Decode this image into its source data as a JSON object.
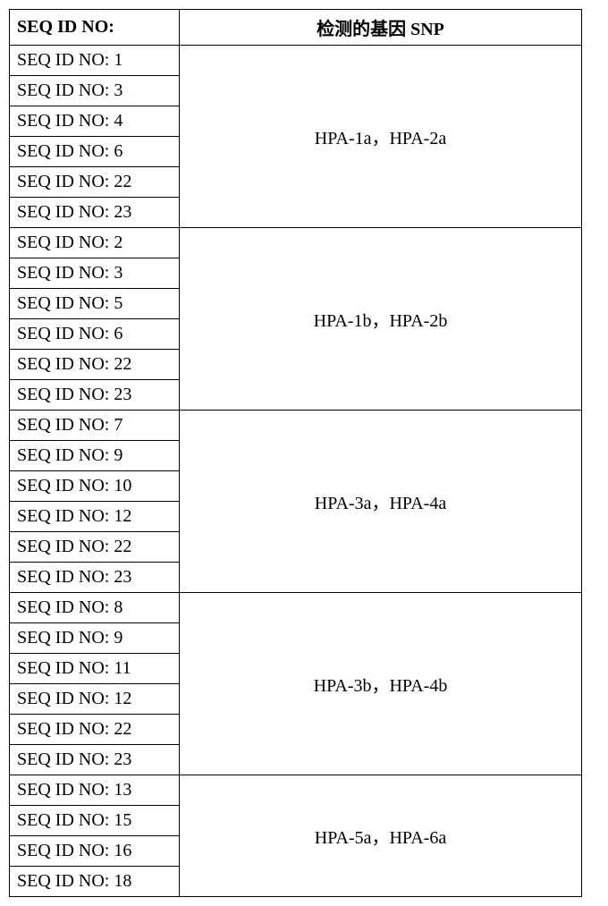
{
  "header": {
    "col1": "SEQ ID NO:",
    "col2": "检测的基因 SNP"
  },
  "groups": [
    {
      "seq": [
        "SEQ ID NO: 1",
        "SEQ ID NO: 3",
        "SEQ ID NO: 4",
        "SEQ ID NO: 6",
        "SEQ ID NO: 22",
        "SEQ ID NO: 23"
      ],
      "snp": "HPA-1a，HPA-2a"
    },
    {
      "seq": [
        "SEQ ID NO: 2",
        "SEQ ID NO: 3",
        "SEQ ID NO: 5",
        "SEQ ID NO: 6",
        "SEQ ID NO: 22",
        "SEQ ID NO: 23"
      ],
      "snp": "HPA-1b，HPA-2b"
    },
    {
      "seq": [
        "SEQ ID NO: 7",
        "SEQ ID NO: 9",
        "SEQ ID NO: 10",
        "SEQ ID NO: 12",
        "SEQ ID NO: 22",
        "SEQ ID NO: 23"
      ],
      "snp": "HPA-3a，HPA-4a"
    },
    {
      "seq": [
        "SEQ ID NO: 8",
        "SEQ ID NO: 9",
        "SEQ ID NO: 11",
        "SEQ ID NO: 12",
        "SEQ ID NO: 22",
        "SEQ ID NO: 23"
      ],
      "snp": "HPA-3b，HPA-4b"
    },
    {
      "seq": [
        "SEQ ID NO: 13",
        "SEQ ID NO: 15",
        "SEQ ID NO: 16",
        "SEQ ID NO: 18"
      ],
      "snp": "HPA-5a，HPA-6a"
    }
  ]
}
